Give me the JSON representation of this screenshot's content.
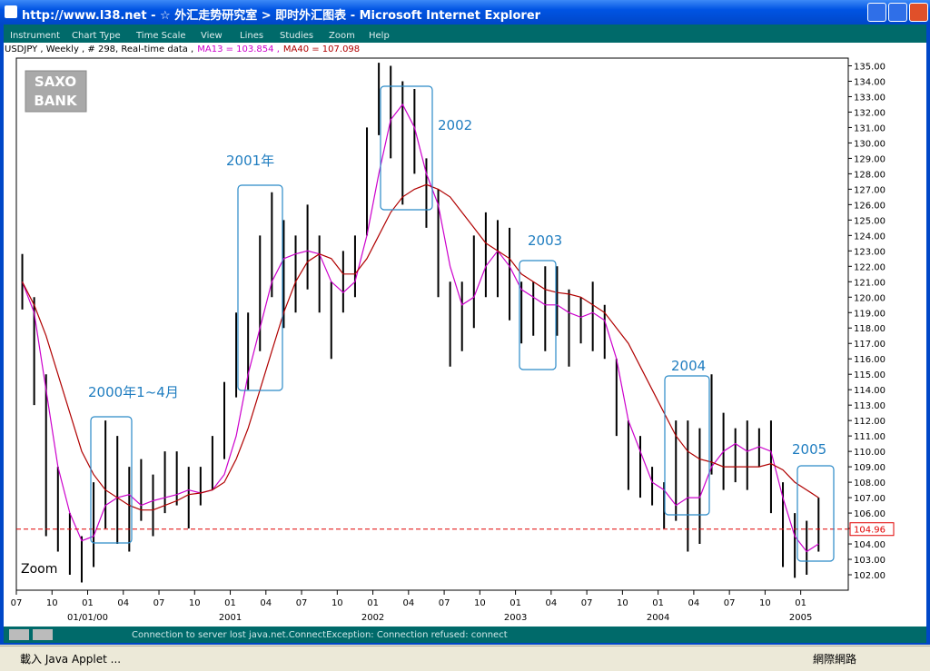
{
  "window": {
    "title": "http://www.l38.net - ☆ 外汇走势研究室 > 即时外汇图表 - Microsoft Internet Explorer",
    "menu": [
      "Instrument",
      "Chart Type",
      "Time Scale",
      "View",
      "Lines",
      "Studies",
      "Zoom",
      "Help"
    ]
  },
  "applet_status": "Connection to server lost java.net.ConnectException: Connection refused: connect",
  "browser_status": {
    "left": "載入 Java Applet ...",
    "right": "網際網路"
  },
  "logo": [
    "SAXO",
    "BANK"
  ],
  "zoom_label": "Zoom",
  "chart_data": {
    "type": "hilo",
    "info": "USDJPY , Weekly , # 298, Real-time data ,",
    "color": "#000000",
    "x": [
      "1999-07",
      "1999-08",
      "1999-09",
      "1999-10",
      "1999-11",
      "1999-12",
      "2000-01",
      "2000-02",
      "2000-03",
      "2000-04",
      "2000-05",
      "2000-06",
      "2000-07",
      "2000-08",
      "2000-09",
      "2000-10",
      "2000-11",
      "2000-12",
      "2001-01",
      "2001-02",
      "2001-03",
      "2001-04",
      "2001-05",
      "2001-06",
      "2001-07",
      "2001-08",
      "2001-09",
      "2001-10",
      "2001-11",
      "2001-12",
      "2002-01",
      "2002-02",
      "2002-03",
      "2002-04",
      "2002-05",
      "2002-06",
      "2002-07",
      "2002-08",
      "2002-09",
      "2002-10",
      "2002-11",
      "2002-12",
      "2003-01",
      "2003-02",
      "2003-03",
      "2003-04",
      "2003-05",
      "2003-06",
      "2003-07",
      "2003-08",
      "2003-09",
      "2003-10",
      "2003-11",
      "2003-12",
      "2004-01",
      "2004-02",
      "2004-03",
      "2004-04",
      "2004-05",
      "2004-06",
      "2004-07",
      "2004-08",
      "2004-09",
      "2004-10",
      "2004-11",
      "2004-12",
      "2005-01",
      "2005-02"
    ],
    "high": [
      122.8,
      120,
      115,
      109,
      106,
      104.5,
      108,
      112,
      111,
      109,
      109.5,
      108.5,
      110,
      110,
      109,
      109,
      111,
      114.5,
      119,
      119,
      124,
      126.8,
      125,
      124,
      126,
      124,
      121,
      123,
      124,
      131,
      135.2,
      135,
      134,
      133.5,
      129,
      127,
      121,
      121,
      124,
      125.5,
      125,
      124.5,
      121,
      121,
      122,
      122,
      120.5,
      120,
      121,
      119.5,
      116,
      112,
      111,
      109,
      108,
      112,
      112,
      111.5,
      115,
      112.5,
      111.5,
      112,
      111.5,
      112,
      108,
      106,
      105.5,
      107
    ],
    "low": [
      119.2,
      113,
      104.5,
      103.5,
      102,
      101.5,
      102.5,
      105,
      104,
      103.5,
      105.5,
      104.5,
      106,
      106.5,
      105,
      106.5,
      107.5,
      109.5,
      113.5,
      114,
      116.5,
      120,
      118,
      119,
      120.5,
      119,
      116,
      119,
      120,
      124,
      130.5,
      129,
      126,
      128,
      124.5,
      120,
      115.5,
      116.5,
      118,
      120,
      120,
      118.5,
      117,
      117.5,
      116.5,
      117.5,
      115.5,
      117,
      116.5,
      116,
      111,
      107.5,
      107,
      106.5,
      105,
      105.5,
      103.5,
      104,
      108.5,
      107.5,
      108,
      107.5,
      109,
      106,
      102.5,
      101.8,
      102,
      103.5
    ],
    "lines": [
      {
        "name": "MA13 = 103.854 ,",
        "color": "#cc00cc",
        "values": [
          121,
          119,
          114,
          109,
          106,
          104.2,
          104.5,
          106.5,
          107,
          107.2,
          106.5,
          106.8,
          107,
          107.2,
          107.5,
          107.3,
          107.5,
          108.5,
          111,
          115,
          118,
          121,
          122.5,
          122.8,
          123,
          122.8,
          121,
          120.3,
          121,
          124,
          128,
          131.5,
          132.5,
          131,
          128,
          126,
          122,
          119.5,
          120,
          122,
          123,
          122,
          120.5,
          120,
          119.5,
          119.5,
          119,
          118.7,
          119,
          118.5,
          116,
          112,
          110,
          108,
          107.5,
          106.5,
          107,
          107,
          109,
          110,
          110.5,
          110,
          110.3,
          110,
          107,
          104.5,
          103.5,
          104
        ]
      },
      {
        "name": "MA40 = 107.098",
        "color": "#b00000",
        "values": [
          121,
          119.5,
          117.5,
          115,
          112.5,
          110,
          108.5,
          107.5,
          107,
          106.5,
          106.2,
          106.2,
          106.5,
          106.8,
          107.2,
          107.3,
          107.5,
          108,
          109.5,
          111.5,
          114,
          116.5,
          119,
          121,
          122.3,
          122.8,
          122.5,
          121.5,
          121.5,
          122.5,
          124,
          125.5,
          126.5,
          127,
          127.3,
          127,
          126.5,
          125.5,
          124.5,
          123.5,
          123,
          122.5,
          121.5,
          121,
          120.5,
          120.3,
          120.2,
          120,
          119.5,
          119,
          118,
          117,
          115.5,
          114,
          112.5,
          111,
          110,
          109.5,
          109.3,
          109,
          109,
          109,
          109,
          109.2,
          108.8,
          108,
          107.5,
          107
        ]
      }
    ],
    "reference_line": {
      "value": 104.96,
      "color": "#e00000"
    },
    "annotations": [
      "2000年1~4月",
      "2001年",
      "2002",
      "2003",
      "2004",
      "2005"
    ],
    "xlim": [
      "1999-07",
      "2005-05"
    ],
    "xticks": [
      {
        "value": "1999-07",
        "label": "07"
      },
      {
        "value": "1999-10",
        "label": "10"
      },
      {
        "value": "2000-01",
        "label": "01"
      },
      {
        "value": "2000-04",
        "label": "04"
      },
      {
        "value": "2000-07",
        "label": "07"
      },
      {
        "value": "2000-10",
        "label": "10"
      },
      {
        "value": "2001-01",
        "label": "01"
      },
      {
        "value": "2001-04",
        "label": "04"
      },
      {
        "value": "2001-07",
        "label": "07"
      },
      {
        "value": "2001-10",
        "label": "10"
      },
      {
        "value": "2002-01",
        "label": "01"
      },
      {
        "value": "2002-04",
        "label": "04"
      },
      {
        "value": "2002-07",
        "label": "07"
      },
      {
        "value": "2002-10",
        "label": "10"
      },
      {
        "value": "2003-01",
        "label": "01"
      },
      {
        "value": "2003-04",
        "label": "04"
      },
      {
        "value": "2003-07",
        "label": "07"
      },
      {
        "value": "2003-10",
        "label": "10"
      },
      {
        "value": "2004-01",
        "label": "01"
      },
      {
        "value": "2004-04",
        "label": "04"
      },
      {
        "value": "2004-07",
        "label": "07"
      },
      {
        "value": "2004-10",
        "label": "10"
      },
      {
        "value": "2005-01",
        "label": "01"
      }
    ],
    "year_labels": [
      {
        "value": "2000-01",
        "label": "01/01/00"
      },
      {
        "value": "2002-01",
        "label": "2002"
      },
      {
        "value": "2003-01",
        "label": "2003"
      },
      {
        "value": "2004-01",
        "label": "2004"
      },
      {
        "value": "2005-01",
        "label": "2005"
      },
      {
        "value": "2001-01",
        "label": "2001"
      }
    ],
    "ylim": [
      101,
      135.5
    ],
    "yticks": [
      {
        "value": 102,
        "label": "102.00"
      },
      {
        "value": 103,
        "label": "103.00"
      },
      {
        "value": 104,
        "label": "104.00"
      },
      {
        "value": 105,
        "label": "105.00"
      },
      {
        "value": 106,
        "label": "106.00"
      },
      {
        "value": 107,
        "label": "107.00"
      },
      {
        "value": 108,
        "label": "108.00"
      },
      {
        "value": 109,
        "label": "109.00"
      },
      {
        "value": 110,
        "label": "110.00"
      },
      {
        "value": 111,
        "label": "111.00"
      },
      {
        "value": 112,
        "label": "112.00"
      },
      {
        "value": 113,
        "label": "113.00"
      },
      {
        "value": 114,
        "label": "114.00"
      },
      {
        "value": 115,
        "label": "115.00"
      },
      {
        "value": 116,
        "label": "116.00"
      },
      {
        "value": 117,
        "label": "117.00"
      },
      {
        "value": 118,
        "label": "118.00"
      },
      {
        "value": 119,
        "label": "119.00"
      },
      {
        "value": 120,
        "label": "120.00"
      },
      {
        "value": 121,
        "label": "121.00"
      },
      {
        "value": 122,
        "label": "122.00"
      },
      {
        "value": 123,
        "label": "123.00"
      },
      {
        "value": 124,
        "label": "124.00"
      },
      {
        "value": 125,
        "label": "125.00"
      },
      {
        "value": 126,
        "label": "126.00"
      },
      {
        "value": 127,
        "label": "127.00"
      },
      {
        "value": 128,
        "label": "128.00"
      },
      {
        "value": 129,
        "label": "129.00"
      },
      {
        "value": 130,
        "label": "130.00"
      },
      {
        "value": 131,
        "label": "131.00"
      },
      {
        "value": 132,
        "label": "132.00"
      },
      {
        "value": 133,
        "label": "133.00"
      },
      {
        "value": 134,
        "label": "134.00"
      },
      {
        "value": 135,
        "label": "135.00"
      }
    ]
  }
}
